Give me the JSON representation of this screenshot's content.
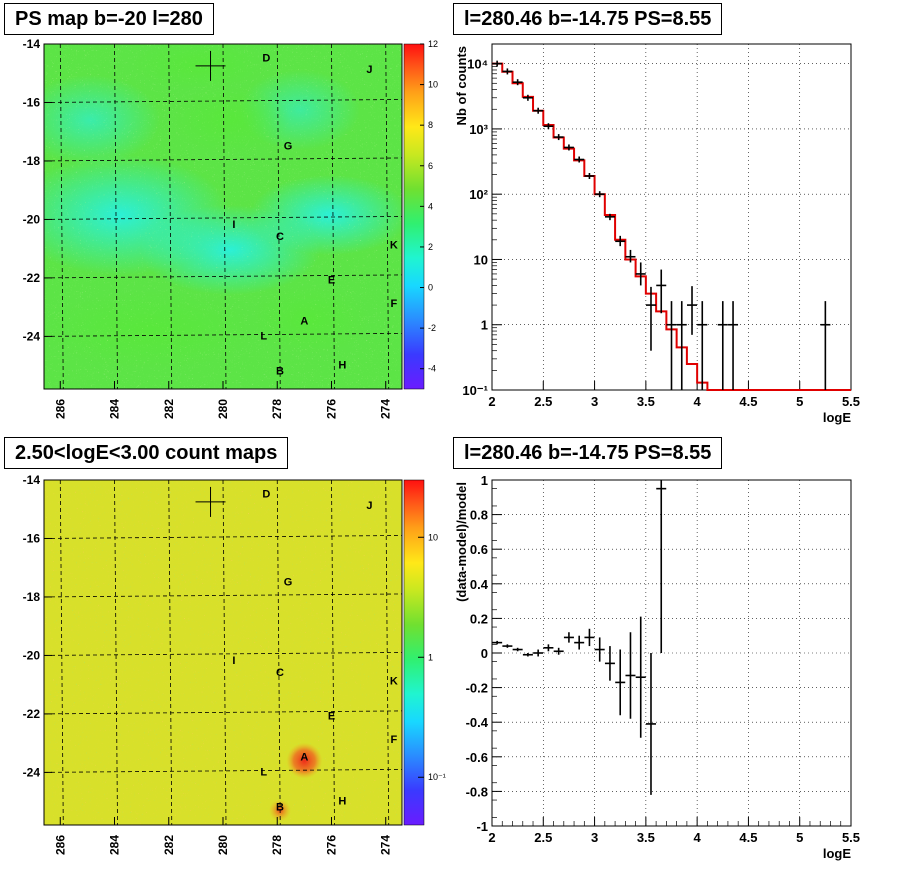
{
  "panels": {
    "tl_title": "PS map b=-20 l=280",
    "tr_title": "l=280.46 b=-14.75 PS=8.55",
    "bl_title": "2.50<logE<3.00 count maps",
    "br_title": "l=280.46 b=-14.75 PS=8.55"
  },
  "maps": {
    "x_ticks": [
      "286",
      "284",
      "282",
      "280",
      "278",
      "276",
      "274"
    ],
    "x_tick_values": [
      286,
      284,
      282,
      280,
      278,
      276,
      274
    ],
    "y_ticks": [
      "-14",
      "-16",
      "-18",
      "-20",
      "-22",
      "-24"
    ],
    "y_tick_values": [
      -14,
      -16,
      -18,
      -20,
      -22,
      -24
    ],
    "xlim": [
      286.6,
      273.4
    ],
    "ylim": [
      -25.8,
      -14
    ],
    "marker": {
      "l": 280.46,
      "b": -14.75
    },
    "sources": [
      {
        "label": "D",
        "l": 278.4,
        "b": -14.6
      },
      {
        "label": "J",
        "l": 274.6,
        "b": -15.0
      },
      {
        "label": "G",
        "l": 277.6,
        "b": -17.6
      },
      {
        "label": "I",
        "l": 279.6,
        "b": -20.3
      },
      {
        "label": "C",
        "l": 277.9,
        "b": -20.7
      },
      {
        "label": "K",
        "l": 273.7,
        "b": -21.0
      },
      {
        "label": "E",
        "l": 276.0,
        "b": -22.2
      },
      {
        "label": "F",
        "l": 273.7,
        "b": -23.0
      },
      {
        "label": "A",
        "l": 277.0,
        "b": -23.6
      },
      {
        "label": "L",
        "l": 278.5,
        "b": -24.1
      },
      {
        "label": "H",
        "l": 275.6,
        "b": -25.1
      },
      {
        "label": "B",
        "l": 277.9,
        "b": -25.3
      }
    ],
    "ps_palette_labels": [
      "12",
      "10",
      "8",
      "6",
      "4",
      "2",
      "0",
      "-2",
      "-4"
    ],
    "ps_palette_values": [
      12,
      10,
      8,
      6,
      4,
      2,
      0,
      -2,
      -4
    ],
    "ps_range": [
      -5,
      12
    ],
    "count_palette_labels": [
      "10",
      "1",
      "10⁻¹"
    ],
    "count_palette_values": [
      10,
      1,
      0.1
    ],
    "count_range": [
      0.04,
      30
    ]
  },
  "chart_data": [
    {
      "type": "line",
      "xlabel": "logE",
      "ylabel": "Nb of counts",
      "xlim": [
        2,
        5.5
      ],
      "ylim": [
        0.1,
        20000
      ],
      "log_y": true,
      "grid": true,
      "x_ticks": [
        "2",
        "2.5",
        "3",
        "3.5",
        "4",
        "4.5",
        "5",
        "5.5"
      ],
      "x_tick_values": [
        2,
        2.5,
        3,
        3.5,
        4,
        4.5,
        5,
        5.5
      ],
      "y_ticks": [
        "10⁻¹",
        "1",
        "10",
        "10²",
        "10³",
        "10⁴"
      ],
      "y_tick_values": [
        0.1,
        1,
        10,
        100,
        1000,
        10000
      ],
      "data": {
        "x": [
          2.05,
          2.15,
          2.25,
          2.35,
          2.45,
          2.55,
          2.65,
          2.75,
          2.85,
          2.95,
          3.05,
          3.15,
          3.25,
          3.35,
          3.45,
          3.55,
          3.65,
          3.75,
          3.85,
          3.95,
          4.05,
          4.25,
          4.35,
          5.25
        ],
        "y": [
          10000,
          7600,
          5200,
          3000,
          1900,
          1100,
          750,
          520,
          340,
          190,
          100,
          45,
          19,
          11,
          6,
          2,
          4,
          1,
          1,
          2,
          1,
          1,
          1,
          1
        ],
        "err_lo": [
          0,
          0,
          0,
          0,
          0,
          0,
          0,
          0,
          0,
          0,
          0,
          5,
          3,
          2,
          2,
          1.6,
          2.5,
          0.9,
          0.9,
          1.3,
          0.9,
          0.9,
          0.9,
          0.9
        ],
        "err_hi": [
          0,
          0,
          0,
          0,
          0,
          0,
          0,
          0,
          0,
          0,
          0,
          5,
          4,
          3,
          3,
          1.8,
          3,
          1.3,
          1.3,
          1.9,
          1.3,
          1.3,
          1.3,
          1.3
        ]
      },
      "model": {
        "edges": [
          2.0,
          2.1,
          2.2,
          2.3,
          2.4,
          2.5,
          2.6,
          2.7,
          2.8,
          2.9,
          3.0,
          3.1,
          3.2,
          3.3,
          3.4,
          3.5,
          3.6,
          3.7,
          3.8,
          3.9,
          4.0,
          4.1,
          5.5
        ],
        "values": [
          10000,
          7500,
          5000,
          3100,
          1900,
          1150,
          740,
          500,
          330,
          190,
          100,
          48,
          20,
          10,
          5.5,
          3,
          1.6,
          0.85,
          0.45,
          0.25,
          0.13,
          0.1
        ]
      }
    },
    {
      "type": "scatter",
      "xlabel": "logE",
      "ylabel": "(data-model)/model",
      "xlim": [
        2,
        5.5
      ],
      "ylim": [
        -1,
        1
      ],
      "grid": true,
      "x_ticks": [
        "2",
        "2.5",
        "3",
        "3.5",
        "4",
        "4.5",
        "5",
        "5.5"
      ],
      "x_tick_values": [
        2,
        2.5,
        3,
        3.5,
        4,
        4.5,
        5,
        5.5
      ],
      "y_ticks": [
        "1",
        "0.8",
        "0.6",
        "0.4",
        "0.2",
        "0",
        "-0.2",
        "-0.4",
        "-0.6",
        "-0.8",
        "-1"
      ],
      "y_tick_values": [
        1,
        0.8,
        0.6,
        0.4,
        0.2,
        0,
        -0.2,
        -0.4,
        -0.6,
        -0.8,
        -1
      ],
      "x": [
        2.05,
        2.15,
        2.25,
        2.35,
        2.45,
        2.55,
        2.65,
        2.75,
        2.85,
        2.95,
        3.05,
        3.15,
        3.25,
        3.35,
        3.45,
        3.55,
        3.65
      ],
      "y": [
        0.06,
        0.04,
        0.02,
        -0.01,
        0.0,
        0.03,
        0.01,
        0.09,
        0.06,
        0.09,
        0.02,
        -0.06,
        -0.17,
        -0.13,
        -0.14,
        -0.41,
        0.95
      ],
      "err": [
        0.01,
        0.01,
        0.01,
        0.01,
        0.02,
        0.02,
        0.02,
        0.03,
        0.04,
        0.05,
        0.07,
        0.1,
        0.19,
        0.25,
        0.35,
        0.41,
        0.95
      ]
    }
  ]
}
